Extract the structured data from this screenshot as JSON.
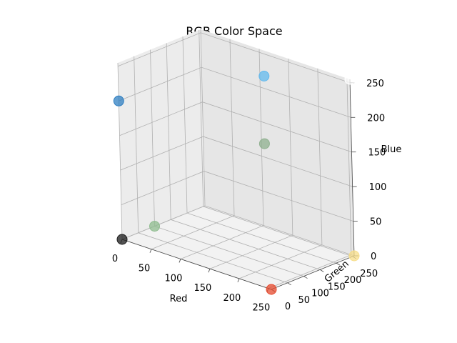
{
  "chart_data": {
    "type": "scatter",
    "title": "RGB Color Space",
    "xlabel": "Red",
    "ylabel": "Green",
    "zlabel": "Blue",
    "xlim": [
      0,
      255
    ],
    "ylim": [
      0,
      255
    ],
    "zlim": [
      0,
      255
    ],
    "x_ticks": [
      "0",
      "50",
      "100",
      "150",
      "200",
      "250"
    ],
    "y_ticks": [
      "0",
      "50",
      "100",
      "150",
      "200",
      "250"
    ],
    "z_ticks": [
      "0",
      "50",
      "100",
      "150",
      "200",
      "250"
    ],
    "grid": true,
    "points": [
      {
        "x": 0,
        "y": 0,
        "z": 0,
        "color": "#1a1a1a"
      },
      {
        "x": 255,
        "y": 0,
        "z": 0,
        "color": "#e64a2e"
      },
      {
        "x": 0,
        "y": 100,
        "z": 0,
        "color": "#8fbc8f"
      },
      {
        "x": 0,
        "y": 0,
        "z": 200,
        "color": "#2f7fc1"
      },
      {
        "x": 135,
        "y": 206,
        "z": 235,
        "color": "#61b9ee"
      },
      {
        "x": 143,
        "y": 188,
        "z": 143,
        "color": "#8fb08f"
      },
      {
        "x": 255,
        "y": 255,
        "z": 0,
        "color": "#f7de8a"
      },
      {
        "x": 255,
        "y": 255,
        "z": 255,
        "color": "#ffffff"
      }
    ]
  }
}
